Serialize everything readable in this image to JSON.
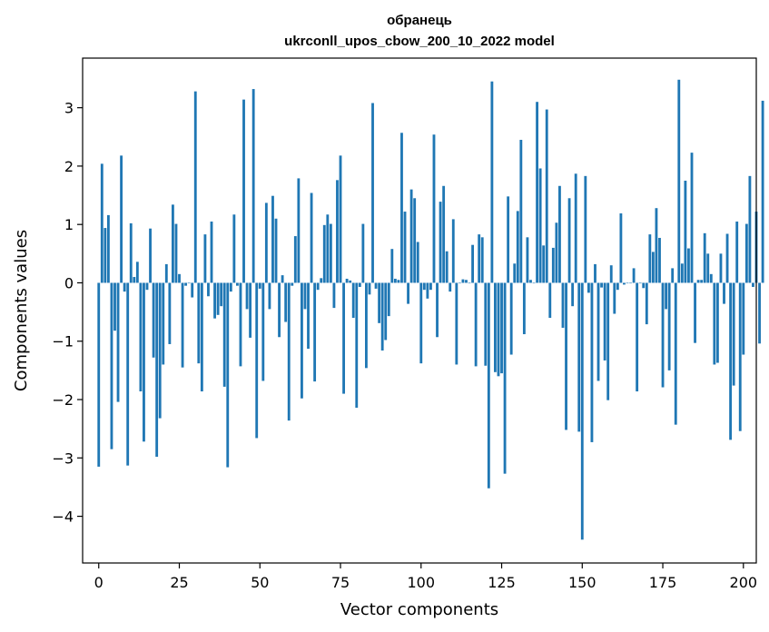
{
  "chart_data": {
    "type": "bar",
    "title_line1": "обранець",
    "title_line2": "ukrconll_upos_cbow_200_10_2022 model",
    "xlabel": "Vector components",
    "ylabel": "Components values",
    "bar_color": "#1f77b4",
    "xlim": [
      -5,
      204
    ],
    "ylim": [
      -4.8,
      3.85
    ],
    "xticks": [
      0,
      25,
      50,
      75,
      100,
      125,
      150,
      175,
      200
    ],
    "xtick_labels": [
      "0",
      "25",
      "50",
      "75",
      "100",
      "125",
      "150",
      "175",
      "200"
    ],
    "yticks": [
      -4,
      -3,
      -2,
      -1,
      0,
      1,
      2,
      3
    ],
    "ytick_labels": [
      "−4",
      "−3",
      "−2",
      "−1",
      "0",
      "1",
      "2",
      "3"
    ],
    "values": [
      -3.15,
      2.04,
      0.94,
      1.16,
      -2.85,
      -0.82,
      -2.04,
      2.18,
      -0.15,
      -3.13,
      1.02,
      0.1,
      0.36,
      -1.86,
      -2.72,
      -0.12,
      0.93,
      -1.28,
      -2.98,
      -2.32,
      -1.4,
      0.32,
      -1.05,
      1.34,
      1.01,
      0.15,
      -1.45,
      -0.05,
      0.0,
      -0.25,
      3.28,
      -1.38,
      -1.86,
      0.83,
      -0.23,
      1.05,
      -0.61,
      -0.55,
      -0.4,
      -1.78,
      -3.16,
      -0.15,
      1.17,
      -0.05,
      -1.43,
      3.14,
      -0.45,
      -0.94,
      3.32,
      -2.66,
      -0.1,
      -1.68,
      1.37,
      -0.45,
      1.49,
      1.1,
      -0.93,
      0.13,
      -0.67,
      -2.36,
      -0.05,
      0.8,
      1.79,
      -1.98,
      -0.45,
      -1.13,
      1.54,
      -1.69,
      -0.12,
      0.08,
      0.99,
      1.17,
      1.01,
      -0.43,
      1.76,
      2.18,
      -1.9,
      0.07,
      0.04,
      -0.6,
      -2.14,
      -0.07,
      1.01,
      -1.46,
      -0.2,
      3.08,
      -0.1,
      -0.69,
      -1.16,
      -0.98,
      -0.57,
      0.58,
      0.07,
      0.05,
      2.57,
      1.22,
      -0.36,
      1.6,
      1.45,
      0.7,
      -1.38,
      -0.12,
      -0.27,
      -0.12,
      2.54,
      -0.93,
      1.39,
      1.66,
      0.54,
      -0.15,
      1.09,
      -1.4,
      0.0,
      0.06,
      0.05,
      0.0,
      0.65,
      -1.43,
      0.83,
      0.78,
      -1.42,
      -3.52,
      3.45,
      -1.53,
      -1.6,
      -1.55,
      -3.27,
      1.48,
      -1.23,
      0.33,
      1.23,
      2.45,
      -0.88,
      0.78,
      0.05,
      0.0,
      3.1,
      1.96,
      0.64,
      2.97,
      -0.6,
      0.6,
      1.03,
      1.66,
      -0.77,
      -2.52,
      1.45,
      -0.4,
      1.87,
      -2.55,
      -4.4,
      1.83,
      -0.17,
      -2.73,
      0.32,
      -1.68,
      -0.08,
      -1.33,
      -2.01,
      0.3,
      -0.53,
      -0.12,
      1.19,
      -0.03,
      0.0,
      0.0,
      0.25,
      -1.86,
      0.0,
      -0.09,
      -0.71,
      0.83,
      0.53,
      1.28,
      0.77,
      -1.79,
      -0.45,
      -1.5,
      0.25,
      -2.43,
      3.48,
      0.33,
      1.75,
      0.59,
      2.23,
      -1.03,
      0.05,
      0.05,
      0.85,
      0.5,
      0.15,
      -1.4,
      -1.37,
      0.5,
      -0.36,
      0.84,
      -2.69,
      -1.76,
      1.05,
      -2.54,
      -1.23,
      1.01,
      1.83,
      -0.07,
      1.22,
      -1.04,
      3.12
    ]
  }
}
